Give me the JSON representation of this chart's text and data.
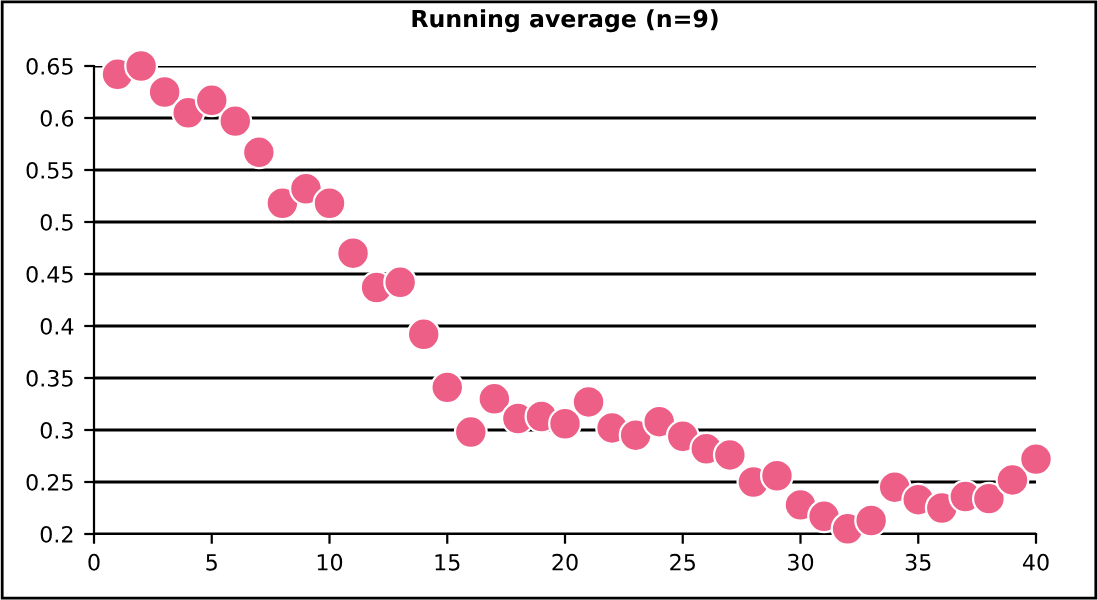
{
  "chart_data": {
    "type": "scatter",
    "title": "Running average (n=9)",
    "x": [
      1,
      2,
      3,
      4,
      5,
      6,
      7,
      8,
      9,
      10,
      11,
      12,
      13,
      14,
      15,
      16,
      17,
      18,
      19,
      20,
      21,
      22,
      23,
      24,
      25,
      26,
      27,
      28,
      29,
      30,
      31,
      32,
      33,
      34,
      35,
      36,
      37,
      38,
      39,
      40
    ],
    "series": [
      {
        "color": "#ee5f88",
        "values": [
          0.642,
          0.65,
          0.625,
          0.605,
          0.617,
          0.597,
          0.567,
          0.518,
          0.532,
          0.518,
          0.47,
          0.437,
          0.442,
          0.392,
          0.341,
          0.298,
          0.33,
          0.311,
          0.313,
          0.306,
          0.327,
          0.302,
          0.295,
          0.308,
          0.294,
          0.282,
          0.276,
          0.25,
          0.256,
          0.228,
          0.217,
          0.205,
          0.213,
          0.245,
          0.233,
          0.225,
          0.236,
          0.234,
          0.252,
          0.272
        ]
      }
    ],
    "xlim": [
      0,
      40
    ],
    "ylim": [
      0.2,
      0.65
    ],
    "xticks": [
      0,
      5,
      10,
      15,
      20,
      25,
      30,
      35,
      40
    ],
    "yticks": [
      0.2,
      0.25,
      0.3,
      0.35,
      0.4,
      0.45,
      0.5,
      0.55,
      0.6,
      0.65
    ],
    "grid": "y",
    "marker": "circle",
    "legend": false
  }
}
